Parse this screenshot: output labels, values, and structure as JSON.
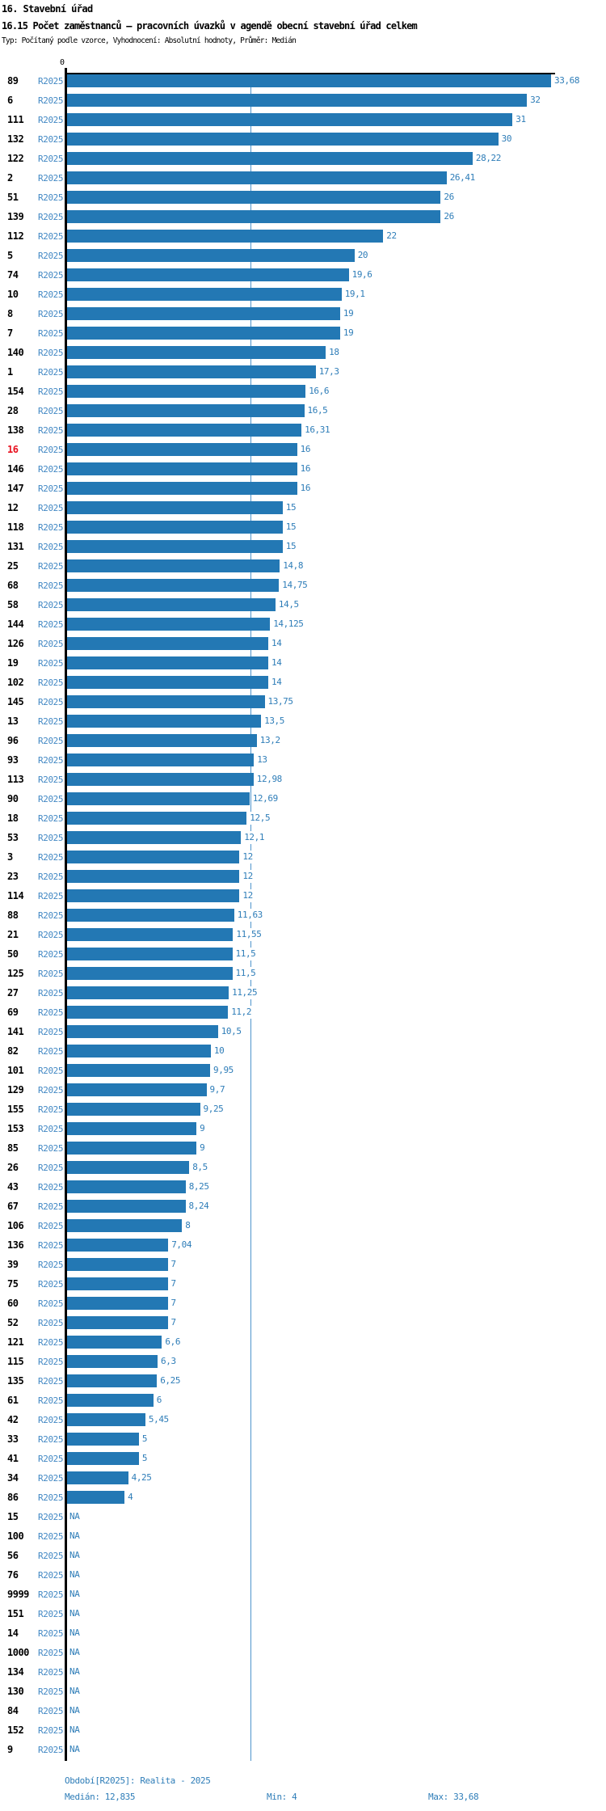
{
  "header": {
    "section_title": "16. Stavební úřad",
    "chart_title": "16.15 Počet zaměstnanců – pracovních úvazků v agendě obecní stavební úřad celkem",
    "meta_line": "Typ: Počítaný podle vzorce, Vyhodnocení: Absolutní hodnoty, Průměr: Medián"
  },
  "chart_data": {
    "type": "bar",
    "orientation": "horizontal",
    "series_label": "R2025",
    "na_text": "NA",
    "highlighted_row_id": "16",
    "median_value": 12.835,
    "x_axis": {
      "origin_tick": "0",
      "min": 0,
      "max_value": 33.68
    },
    "rows": [
      {
        "id": "89",
        "value": 33.68,
        "display": "33,68"
      },
      {
        "id": "6",
        "value": 32,
        "display": "32"
      },
      {
        "id": "111",
        "value": 31,
        "display": "31"
      },
      {
        "id": "132",
        "value": 30,
        "display": "30"
      },
      {
        "id": "122",
        "value": 28.22,
        "display": "28,22"
      },
      {
        "id": "2",
        "value": 26.41,
        "display": "26,41"
      },
      {
        "id": "51",
        "value": 26,
        "display": "26"
      },
      {
        "id": "139",
        "value": 26,
        "display": "26"
      },
      {
        "id": "112",
        "value": 22,
        "display": "22"
      },
      {
        "id": "5",
        "value": 20,
        "display": "20"
      },
      {
        "id": "74",
        "value": 19.6,
        "display": "19,6"
      },
      {
        "id": "10",
        "value": 19.1,
        "display": "19,1"
      },
      {
        "id": "8",
        "value": 19,
        "display": "19"
      },
      {
        "id": "7",
        "value": 19,
        "display": "19"
      },
      {
        "id": "140",
        "value": 18,
        "display": "18"
      },
      {
        "id": "1",
        "value": 17.3,
        "display": "17,3"
      },
      {
        "id": "154",
        "value": 16.6,
        "display": "16,6"
      },
      {
        "id": "28",
        "value": 16.5,
        "display": "16,5"
      },
      {
        "id": "138",
        "value": 16.31,
        "display": "16,31"
      },
      {
        "id": "16",
        "value": 16,
        "display": "16"
      },
      {
        "id": "146",
        "value": 16,
        "display": "16"
      },
      {
        "id": "147",
        "value": 16,
        "display": "16"
      },
      {
        "id": "12",
        "value": 15,
        "display": "15"
      },
      {
        "id": "118",
        "value": 15,
        "display": "15"
      },
      {
        "id": "131",
        "value": 15,
        "display": "15"
      },
      {
        "id": "25",
        "value": 14.8,
        "display": "14,8"
      },
      {
        "id": "68",
        "value": 14.75,
        "display": "14,75"
      },
      {
        "id": "58",
        "value": 14.5,
        "display": "14,5"
      },
      {
        "id": "144",
        "value": 14.125,
        "display": "14,125"
      },
      {
        "id": "126",
        "value": 14,
        "display": "14"
      },
      {
        "id": "19",
        "value": 14,
        "display": "14"
      },
      {
        "id": "102",
        "value": 14,
        "display": "14"
      },
      {
        "id": "145",
        "value": 13.75,
        "display": "13,75"
      },
      {
        "id": "13",
        "value": 13.5,
        "display": "13,5"
      },
      {
        "id": "96",
        "value": 13.2,
        "display": "13,2"
      },
      {
        "id": "93",
        "value": 13,
        "display": "13"
      },
      {
        "id": "113",
        "value": 12.98,
        "display": "12,98"
      },
      {
        "id": "90",
        "value": 12.69,
        "display": "12,69"
      },
      {
        "id": "18",
        "value": 12.5,
        "display": "12,5"
      },
      {
        "id": "53",
        "value": 12.1,
        "display": "12,1"
      },
      {
        "id": "3",
        "value": 12,
        "display": "12"
      },
      {
        "id": "23",
        "value": 12,
        "display": "12"
      },
      {
        "id": "114",
        "value": 12,
        "display": "12"
      },
      {
        "id": "88",
        "value": 11.63,
        "display": "11,63"
      },
      {
        "id": "21",
        "value": 11.55,
        "display": "11,55"
      },
      {
        "id": "50",
        "value": 11.5,
        "display": "11,5"
      },
      {
        "id": "125",
        "value": 11.5,
        "display": "11,5"
      },
      {
        "id": "27",
        "value": 11.25,
        "display": "11,25"
      },
      {
        "id": "69",
        "value": 11.2,
        "display": "11,2"
      },
      {
        "id": "141",
        "value": 10.5,
        "display": "10,5"
      },
      {
        "id": "82",
        "value": 10,
        "display": "10"
      },
      {
        "id": "101",
        "value": 9.95,
        "display": "9,95"
      },
      {
        "id": "129",
        "value": 9.7,
        "display": "9,7"
      },
      {
        "id": "155",
        "value": 9.25,
        "display": "9,25"
      },
      {
        "id": "153",
        "value": 9,
        "display": "9"
      },
      {
        "id": "85",
        "value": 9,
        "display": "9"
      },
      {
        "id": "26",
        "value": 8.5,
        "display": "8,5"
      },
      {
        "id": "43",
        "value": 8.25,
        "display": "8,25"
      },
      {
        "id": "67",
        "value": 8.24,
        "display": "8,24"
      },
      {
        "id": "106",
        "value": 8,
        "display": "8"
      },
      {
        "id": "136",
        "value": 7.04,
        "display": "7,04"
      },
      {
        "id": "39",
        "value": 7,
        "display": "7"
      },
      {
        "id": "75",
        "value": 7,
        "display": "7"
      },
      {
        "id": "60",
        "value": 7,
        "display": "7"
      },
      {
        "id": "52",
        "value": 7,
        "display": "7"
      },
      {
        "id": "121",
        "value": 6.6,
        "display": "6,6"
      },
      {
        "id": "115",
        "value": 6.3,
        "display": "6,3"
      },
      {
        "id": "135",
        "value": 6.25,
        "display": "6,25"
      },
      {
        "id": "61",
        "value": 6,
        "display": "6"
      },
      {
        "id": "42",
        "value": 5.45,
        "display": "5,45"
      },
      {
        "id": "33",
        "value": 5,
        "display": "5"
      },
      {
        "id": "41",
        "value": 5,
        "display": "5"
      },
      {
        "id": "34",
        "value": 4.25,
        "display": "4,25"
      },
      {
        "id": "86",
        "value": 4,
        "display": "4"
      },
      {
        "id": "15",
        "value": null,
        "display": "NA"
      },
      {
        "id": "100",
        "value": null,
        "display": "NA"
      },
      {
        "id": "56",
        "value": null,
        "display": "NA"
      },
      {
        "id": "76",
        "value": null,
        "display": "NA"
      },
      {
        "id": "9999",
        "value": null,
        "display": "NA"
      },
      {
        "id": "151",
        "value": null,
        "display": "NA"
      },
      {
        "id": "14",
        "value": null,
        "display": "NA"
      },
      {
        "id": "1000",
        "value": null,
        "display": "NA"
      },
      {
        "id": "134",
        "value": null,
        "display": "NA"
      },
      {
        "id": "130",
        "value": null,
        "display": "NA"
      },
      {
        "id": "84",
        "value": null,
        "display": "NA"
      },
      {
        "id": "152",
        "value": null,
        "display": "NA"
      },
      {
        "id": "9",
        "value": null,
        "display": "NA"
      }
    ]
  },
  "footer": {
    "period": "Období[R2025]: Realita - 2025",
    "median": "Medián: 12,835",
    "min": "Min: 4",
    "max": "Max: 33,68"
  },
  "colors": {
    "bar": "#2378b4",
    "median_line": "#4e94cc",
    "series_label": "#4288c4",
    "value_label": "#2e7db8",
    "highlight_id": "#e8101e",
    "axis": "#000000"
  }
}
